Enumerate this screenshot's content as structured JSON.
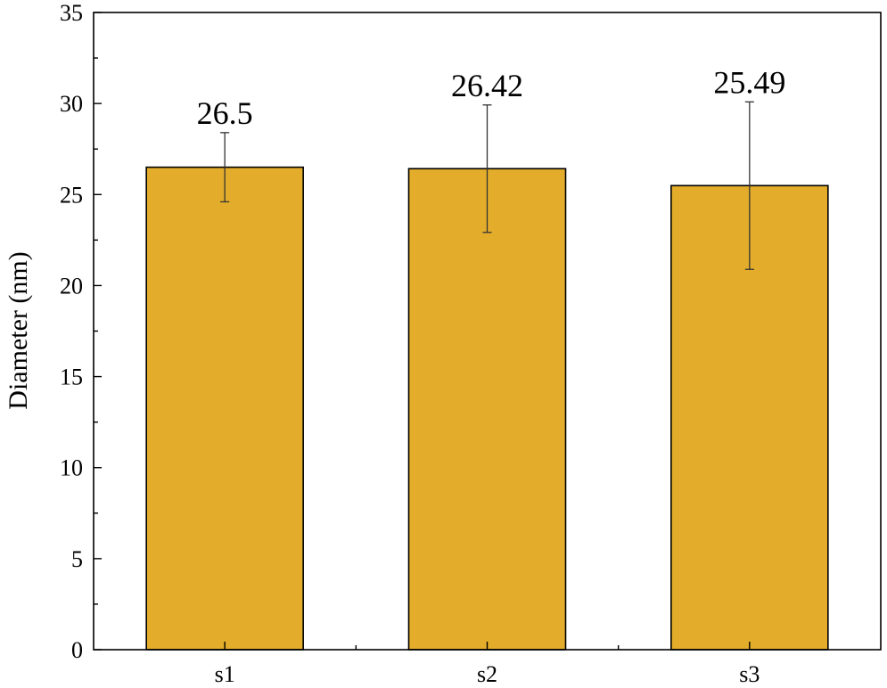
{
  "chart_data": {
    "type": "bar",
    "title": "",
    "xlabel": "",
    "ylabel": "Diameter (nm)",
    "categories": [
      "s1",
      "s2",
      "s3"
    ],
    "values": [
      26.5,
      26.42,
      25.49
    ],
    "error_plus": [
      1.9,
      3.5,
      4.6
    ],
    "error_minus": [
      1.9,
      3.5,
      4.6
    ],
    "data_labels": [
      "26.5",
      "26.42",
      "25.49"
    ],
    "ylim": [
      0,
      35
    ],
    "yticks": [
      0,
      5,
      10,
      15,
      20,
      25,
      30,
      35
    ],
    "grid": false,
    "legend": "none",
    "colors": {
      "bar_fill": "#E3AD2B",
      "bar_edge": "#000000",
      "error_bar": "#333333"
    }
  }
}
